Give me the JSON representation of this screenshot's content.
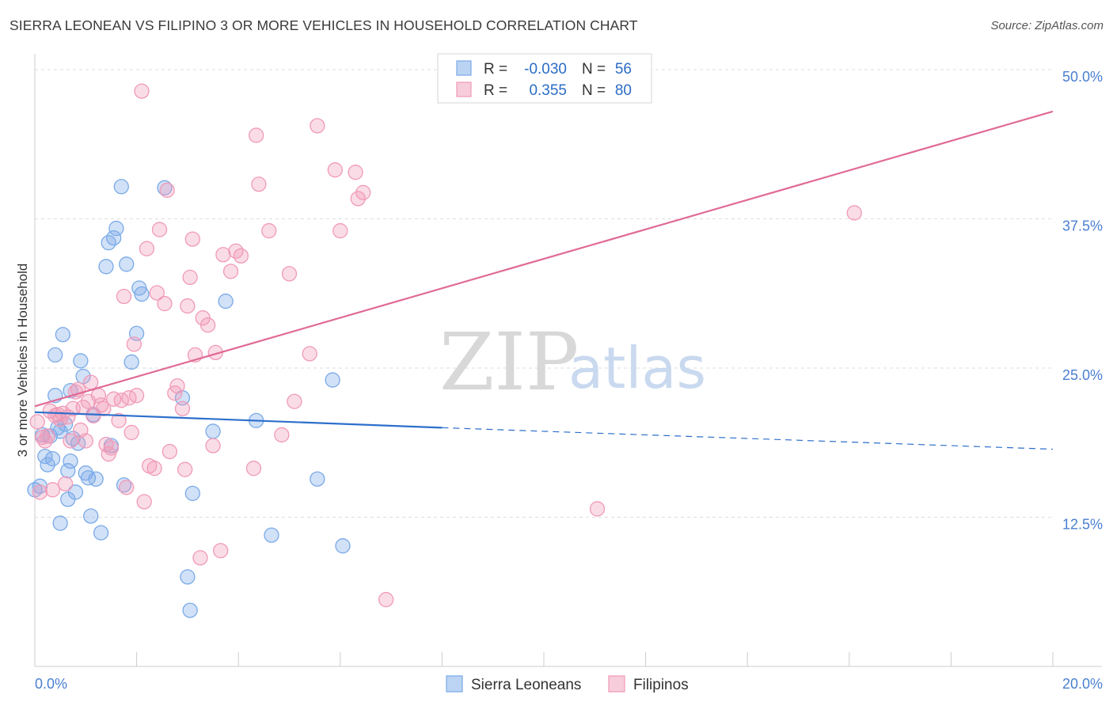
{
  "header": {
    "title": "SIERRA LEONEAN VS FILIPINO 3 OR MORE VEHICLES IN HOUSEHOLD CORRELATION CHART",
    "source": "Source: ZipAtlas.com"
  },
  "watermark": {
    "zip": "ZIP",
    "atlas": "atlas"
  },
  "legend": {
    "rows": [
      {
        "r_label": "R =",
        "r_value": "-0.030",
        "n_label": "N =",
        "n_value": "56",
        "color": "#7aaae8"
      },
      {
        "r_label": "R =",
        "r_value": "0.355",
        "n_label": "N =",
        "n_value": "80",
        "color": "#f09ab8"
      }
    ]
  },
  "bottom_legend": [
    {
      "label": "Sierra Leoneans",
      "color": "#7aaae8"
    },
    {
      "label": "Filipinos",
      "color": "#f09ab8"
    }
  ],
  "chart_data": {
    "type": "scatter",
    "xlabel": "",
    "ylabel": "3 or more Vehicles in Household",
    "xlim": [
      0,
      20
    ],
    "ylim": [
      0,
      50
    ],
    "x_tick_labels": [
      "0.0%",
      "20.0%"
    ],
    "y_ticks": [
      {
        "value": 12.5,
        "label": "12.5%"
      },
      {
        "value": 25.0,
        "label": "25.0%"
      },
      {
        "value": 37.5,
        "label": "37.5%"
      },
      {
        "value": 50.0,
        "label": "50.0%"
      }
    ],
    "grid": true,
    "series": [
      {
        "name": "Sierra Leoneans",
        "color": "#7aaae8",
        "line_color": "#2d6fcc",
        "trend": {
          "x0": 0.0,
          "y0": 21.3,
          "x1": 8.0,
          "y1": 20.0,
          "x_end": 20.0,
          "y_end": 18.2
        },
        "points": [
          [
            0.0,
            14.8
          ],
          [
            0.1,
            15.1
          ],
          [
            0.15,
            19.4
          ],
          [
            0.2,
            17.6
          ],
          [
            0.25,
            16.9
          ],
          [
            0.3,
            19.3
          ],
          [
            0.35,
            17.4
          ],
          [
            0.4,
            26.1
          ],
          [
            0.4,
            22.7
          ],
          [
            0.45,
            20.0
          ],
          [
            0.5,
            19.7
          ],
          [
            0.5,
            12.0
          ],
          [
            0.55,
            27.8
          ],
          [
            0.6,
            20.3
          ],
          [
            0.65,
            14.0
          ],
          [
            0.65,
            16.4
          ],
          [
            0.7,
            23.1
          ],
          [
            0.7,
            17.2
          ],
          [
            0.75,
            19.1
          ],
          [
            0.8,
            14.6
          ],
          [
            0.85,
            18.7
          ],
          [
            0.9,
            25.6
          ],
          [
            0.95,
            24.3
          ],
          [
            1.0,
            16.2
          ],
          [
            1.05,
            15.8
          ],
          [
            1.1,
            12.6
          ],
          [
            1.15,
            21.1
          ],
          [
            1.2,
            15.7
          ],
          [
            1.3,
            11.2
          ],
          [
            1.4,
            33.5
          ],
          [
            1.45,
            35.5
          ],
          [
            1.5,
            18.5
          ],
          [
            1.55,
            35.9
          ],
          [
            1.6,
            36.7
          ],
          [
            1.7,
            40.2
          ],
          [
            1.75,
            15.2
          ],
          [
            1.8,
            33.7
          ],
          [
            1.9,
            25.5
          ],
          [
            2.0,
            27.9
          ],
          [
            2.05,
            31.7
          ],
          [
            2.1,
            31.2
          ],
          [
            2.55,
            40.1
          ],
          [
            2.9,
            22.5
          ],
          [
            3.0,
            7.5
          ],
          [
            3.05,
            4.7
          ],
          [
            3.1,
            14.5
          ],
          [
            3.5,
            19.7
          ],
          [
            3.75,
            30.6
          ],
          [
            4.35,
            20.6
          ],
          [
            4.65,
            11.0
          ],
          [
            5.55,
            15.7
          ],
          [
            5.85,
            24.0
          ],
          [
            6.05,
            10.1
          ]
        ]
      },
      {
        "name": "Filipinos",
        "color": "#f09ab8",
        "line_color": "#e06a96",
        "trend": {
          "x0": 0.0,
          "y0": 21.8,
          "x1": 20.0,
          "y1": 46.5
        },
        "points": [
          [
            0.05,
            20.5
          ],
          [
            0.1,
            14.6
          ],
          [
            0.15,
            19.2
          ],
          [
            0.2,
            18.9
          ],
          [
            0.25,
            19.3
          ],
          [
            0.3,
            21.4
          ],
          [
            0.35,
            14.8
          ],
          [
            0.4,
            21.0
          ],
          [
            0.45,
            21.1
          ],
          [
            0.5,
            20.7
          ],
          [
            0.55,
            21.2
          ],
          [
            0.6,
            15.3
          ],
          [
            0.65,
            20.9
          ],
          [
            0.7,
            18.9
          ],
          [
            0.75,
            21.6
          ],
          [
            0.8,
            23.0
          ],
          [
            0.85,
            23.2
          ],
          [
            0.9,
            19.8
          ],
          [
            0.95,
            21.7
          ],
          [
            1.0,
            18.9
          ],
          [
            1.05,
            22.2
          ],
          [
            1.1,
            23.8
          ],
          [
            1.15,
            21.0
          ],
          [
            1.25,
            22.7
          ],
          [
            1.3,
            21.9
          ],
          [
            1.35,
            21.6
          ],
          [
            1.4,
            18.6
          ],
          [
            1.45,
            17.8
          ],
          [
            1.5,
            18.3
          ],
          [
            1.55,
            22.4
          ],
          [
            1.65,
            20.6
          ],
          [
            1.7,
            22.3
          ],
          [
            1.75,
            31.0
          ],
          [
            1.8,
            15.0
          ],
          [
            1.85,
            22.5
          ],
          [
            1.9,
            19.6
          ],
          [
            1.95,
            27.0
          ],
          [
            2.0,
            22.7
          ],
          [
            2.1,
            48.2
          ],
          [
            2.15,
            13.8
          ],
          [
            2.2,
            35.0
          ],
          [
            2.25,
            16.8
          ],
          [
            2.35,
            16.6
          ],
          [
            2.4,
            31.3
          ],
          [
            2.45,
            36.6
          ],
          [
            2.55,
            30.4
          ],
          [
            2.6,
            39.9
          ],
          [
            2.65,
            18.0
          ],
          [
            2.75,
            22.9
          ],
          [
            2.8,
            23.5
          ],
          [
            2.9,
            21.6
          ],
          [
            2.95,
            16.5
          ],
          [
            3.0,
            30.2
          ],
          [
            3.05,
            32.6
          ],
          [
            3.1,
            35.8
          ],
          [
            3.15,
            26.1
          ],
          [
            3.25,
            9.1
          ],
          [
            3.3,
            29.2
          ],
          [
            3.4,
            28.6
          ],
          [
            3.5,
            18.5
          ],
          [
            3.55,
            26.3
          ],
          [
            3.65,
            9.7
          ],
          [
            3.7,
            34.5
          ],
          [
            3.85,
            33.1
          ],
          [
            3.95,
            34.8
          ],
          [
            4.05,
            34.4
          ],
          [
            4.3,
            16.6
          ],
          [
            4.35,
            44.5
          ],
          [
            4.4,
            40.4
          ],
          [
            4.6,
            36.5
          ],
          [
            4.85,
            19.4
          ],
          [
            5.0,
            32.9
          ],
          [
            5.1,
            22.2
          ],
          [
            5.4,
            26.2
          ],
          [
            5.55,
            45.3
          ],
          [
            5.9,
            41.6
          ],
          [
            6.0,
            36.5
          ],
          [
            6.3,
            41.4
          ],
          [
            6.35,
            39.2
          ],
          [
            6.45,
            39.7
          ],
          [
            6.9,
            5.6
          ],
          [
            11.05,
            13.2
          ],
          [
            16.1,
            38.0
          ]
        ]
      }
    ]
  }
}
